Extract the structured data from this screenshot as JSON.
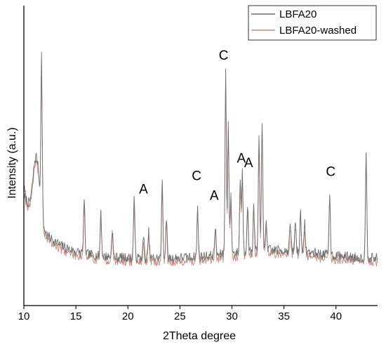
{
  "chart_data": {
    "type": "line",
    "title": "",
    "xlabel": "2Theta degree",
    "ylabel": "Intensity (a.u.)",
    "xlim": [
      10,
      44
    ],
    "ylim": [
      0,
      100
    ],
    "x_ticks": [
      10,
      15,
      20,
      25,
      30,
      35,
      40
    ],
    "y_ticks_shown": false,
    "legend_position": "top-right",
    "series": [
      {
        "name": "LBFA20",
        "color": "#6f6f6f"
      },
      {
        "name": "LBFA20-washed",
        "color": "#c48a7e"
      }
    ],
    "peaks": [
      {
        "x": 11.7,
        "y": 83
      },
      {
        "x": 15.8,
        "y": 37
      },
      {
        "x": 17.4,
        "y": 33
      },
      {
        "x": 18.5,
        "y": 25
      },
      {
        "x": 20.6,
        "y": 40
      },
      {
        "x": 21.5,
        "y": 22
      },
      {
        "x": 22.0,
        "y": 24
      },
      {
        "x": 23.3,
        "y": 48
      },
      {
        "x": 23.7,
        "y": 31
      },
      {
        "x": 26.7,
        "y": 34
      },
      {
        "x": 28.4,
        "y": 25
      },
      {
        "x": 29.4,
        "y": 95
      },
      {
        "x": 29.65,
        "y": 72
      },
      {
        "x": 29.9,
        "y": 38
      },
      {
        "x": 30.8,
        "y": 46
      },
      {
        "x": 31.0,
        "y": 49
      },
      {
        "x": 31.5,
        "y": 34
      },
      {
        "x": 32.1,
        "y": 33
      },
      {
        "x": 32.6,
        "y": 63
      },
      {
        "x": 32.9,
        "y": 72
      },
      {
        "x": 33.3,
        "y": 26
      },
      {
        "x": 35.6,
        "y": 25
      },
      {
        "x": 36.1,
        "y": 26
      },
      {
        "x": 36.6,
        "y": 31
      },
      {
        "x": 37.0,
        "y": 25
      },
      {
        "x": 39.4,
        "y": 40
      },
      {
        "x": 42.9,
        "y": 62
      }
    ],
    "annotations": [
      {
        "text": "A",
        "x": 21.5,
        "y": 39
      },
      {
        "text": "C",
        "x": 26.6,
        "y": 45
      },
      {
        "text": "A",
        "x": 28.3,
        "y": 36
      },
      {
        "text": "C",
        "x": 29.2,
        "y": 100
      },
      {
        "text": "A",
        "x": 30.9,
        "y": 53
      },
      {
        "text": "A",
        "x": 31.6,
        "y": 51
      },
      {
        "text": "C",
        "x": 39.5,
        "y": 47
      }
    ]
  }
}
